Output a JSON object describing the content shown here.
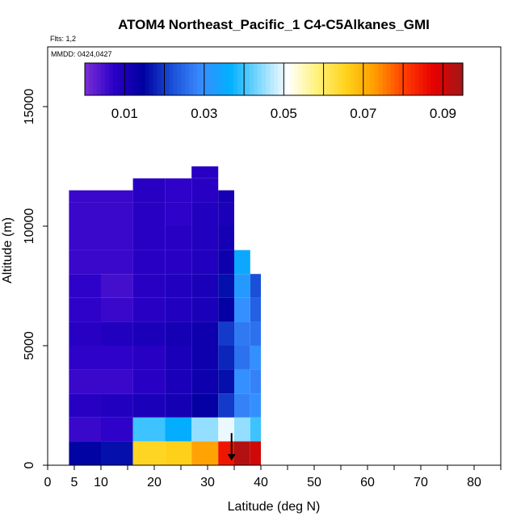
{
  "chart_data": {
    "type": "heatmap",
    "title": "ATOM4 Northeast_Pacific_1 C4-C5Alkanes_GMI",
    "flights_label": "Flts: 1,2",
    "dates_label": "MMDD: 0424,0427",
    "xlabel": "Latitude (deg N)",
    "ylabel": "Altitude (m)",
    "xlim": [
      0,
      85
    ],
    "ylim": [
      0,
      17500
    ],
    "x_ticks": [
      0,
      5,
      10,
      20,
      30,
      40,
      50,
      60,
      70,
      80
    ],
    "y_ticks": [
      0,
      5000,
      10000,
      15000
    ],
    "colorbar": {
      "range": [
        0,
        0.095
      ],
      "tick_values": [
        0.01,
        0.03,
        0.05,
        0.07,
        0.09
      ],
      "tick_labels": [
        "0.01",
        "0.03",
        "0.05",
        "0.07",
        "0.09"
      ],
      "colors": [
        "#7a2fd6",
        "#2b00c8",
        "#0000a0",
        "#1a4fd8",
        "#3a8cff",
        "#00b0ff",
        "#80d8ff",
        "#ffffff",
        "#fff27a",
        "#ffd21a",
        "#ff9a00",
        "#ff3c00",
        "#e60000",
        "#a01818"
      ]
    },
    "columns": [
      {
        "lat0": 4,
        "lat1": 10,
        "top": 11500,
        "values": [
          0.015,
          0.006,
          0.008,
          0.006,
          0.007,
          0.008,
          0.007,
          0.007,
          0.006,
          0.006,
          0.006,
          0.006
        ]
      },
      {
        "lat0": 10,
        "lat1": 16,
        "top": 11500,
        "values": [
          0.016,
          0.007,
          0.009,
          0.006,
          0.007,
          0.009,
          0.006,
          0.005,
          0.006,
          0.006,
          0.006,
          0.006
        ]
      },
      {
        "lat0": 16,
        "lat1": 22,
        "top": 12000,
        "values": [
          0.065,
          0.04,
          0.01,
          0.008,
          0.008,
          0.01,
          0.008,
          0.008,
          0.008,
          0.008,
          0.008,
          0.008,
          0.007
        ]
      },
      {
        "lat0": 22,
        "lat1": 27,
        "top": 12000,
        "values": [
          0.066,
          0.036,
          0.011,
          0.01,
          0.01,
          0.011,
          0.009,
          0.009,
          0.008,
          0.008,
          0.007,
          0.007,
          0.006
        ]
      },
      {
        "lat0": 27,
        "lat1": 32,
        "top": 12500,
        "values": [
          0.072,
          0.045,
          0.014,
          0.012,
          0.012,
          0.012,
          0.01,
          0.01,
          0.009,
          0.009,
          0.009,
          0.008,
          0.008
        ]
      },
      {
        "lat0": 32,
        "lat1": 35,
        "top": 11500,
        "values": [
          0.085,
          0.05,
          0.02,
          0.016,
          0.018,
          0.02,
          0.014,
          0.016,
          0.012,
          0.011,
          0.01,
          0.011
        ]
      },
      {
        "lat0": 35,
        "lat1": 38,
        "top": 9000,
        "values": [
          0.093,
          0.045,
          0.028,
          0.03,
          0.026,
          0.027,
          0.03,
          0.032,
          0.035
        ]
      },
      {
        "lat0": 38,
        "lat1": 40,
        "top": 8000,
        "values": [
          0.09,
          0.04,
          0.03,
          0.028,
          0.03,
          0.026,
          0.024,
          0.022
        ]
      }
    ],
    "marker_lat": 34.5,
    "marker_alt": 600
  }
}
